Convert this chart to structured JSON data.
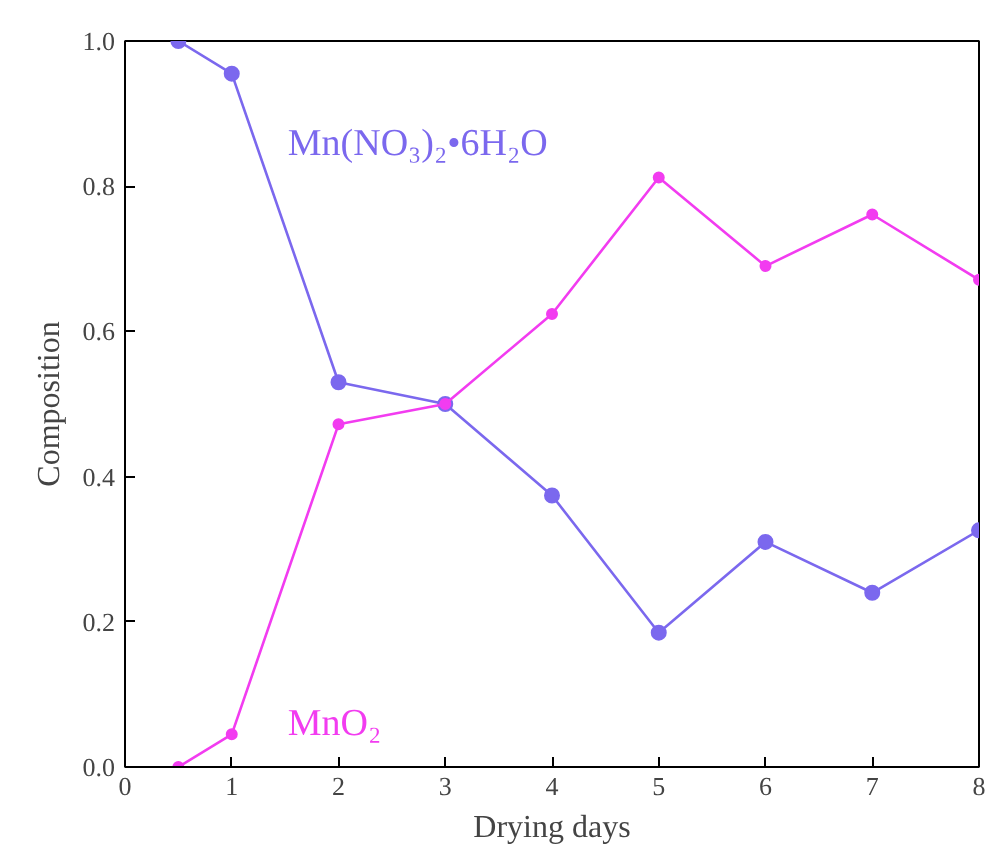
{
  "chart_data": {
    "type": "line",
    "xlabel": "Drying days",
    "ylabel": "Composition",
    "x": [
      0.5,
      1,
      2,
      3,
      4,
      5,
      6,
      7,
      8
    ],
    "series": [
      {
        "name": "Mn(NO₃)₂•6H₂O",
        "color": "#7b68ee",
        "values": [
          1.0,
          0.955,
          0.53,
          0.5,
          0.374,
          0.185,
          0.31,
          0.24,
          0.326
        ]
      },
      {
        "name": "MnO₂",
        "color": "#f23cf0",
        "values": [
          0.0,
          0.045,
          0.472,
          0.5,
          0.624,
          0.812,
          0.69,
          0.761,
          0.671
        ]
      }
    ],
    "xlim": [
      0,
      8
    ],
    "ylim": [
      0,
      1
    ],
    "xticks": [
      0,
      1,
      2,
      3,
      4,
      5,
      6,
      7,
      8
    ],
    "yticks": [
      {
        "value": 0,
        "label": "0.0"
      },
      {
        "value": 0.2,
        "label": "0.2"
      },
      {
        "value": 0.4,
        "label": "0.4"
      },
      {
        "value": 0.6,
        "label": "0.6"
      },
      {
        "value": 0.8,
        "label": "0.8"
      },
      {
        "value": 1,
        "label": "1.0"
      }
    ],
    "grid": false,
    "marker": "circle",
    "line_style": "solid"
  }
}
